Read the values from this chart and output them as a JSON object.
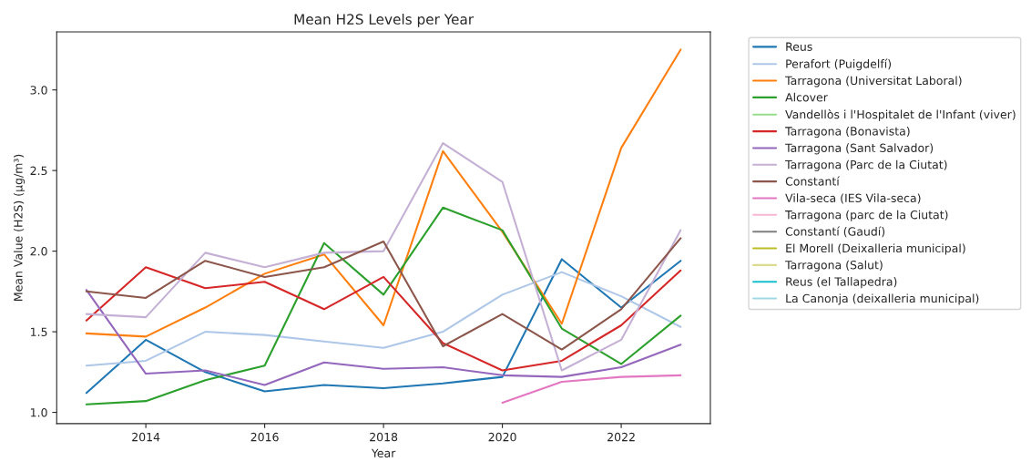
{
  "chart_data": {
    "type": "line",
    "title": "Mean H2S Levels per Year",
    "xlabel": "Year",
    "ylabel": "Mean Value (H2S) (µg/m³)",
    "x": [
      2013,
      2014,
      2015,
      2016,
      2017,
      2018,
      2019,
      2020,
      2021,
      2022,
      2023
    ],
    "xlim": [
      2012.5,
      2023.5
    ],
    "xticks": [
      2014,
      2016,
      2018,
      2020,
      2022
    ],
    "ylim": [
      0.93,
      3.36
    ],
    "yticks": [
      {
        "value": 1,
        "label": "1.0"
      },
      {
        "value": 1.5,
        "label": "1.5"
      },
      {
        "value": 2,
        "label": "2.0"
      },
      {
        "value": 2.5,
        "label": "2.5"
      },
      {
        "value": 3,
        "label": "3.0"
      }
    ],
    "grid": false,
    "legend": "right",
    "marker": "none",
    "line_style": "solid",
    "series": [
      {
        "name": "Reus",
        "color": "#1f77b4",
        "values": [
          1.12,
          1.45,
          1.25,
          1.13,
          1.17,
          1.15,
          1.18,
          1.22,
          1.95,
          1.65,
          1.94
        ]
      },
      {
        "name": "Perafort (Puigdelfí)",
        "color": "#aec7e8",
        "values": [
          1.29,
          1.32,
          1.5,
          1.48,
          1.44,
          1.4,
          1.5,
          1.73,
          1.87,
          1.72,
          1.53
        ]
      },
      {
        "name": "Tarragona (Universitat Laboral)",
        "color": "#ff7f0e",
        "values": [
          1.49,
          1.47,
          1.65,
          1.86,
          1.98,
          1.54,
          2.62,
          2.12,
          1.55,
          2.64,
          3.25
        ]
      },
      {
        "name": "Alcover",
        "color": "#2ca02c",
        "values": [
          1.05,
          1.07,
          1.2,
          1.29,
          2.05,
          1.73,
          2.27,
          2.13,
          1.52,
          1.3,
          1.6
        ]
      },
      {
        "name": "Vandellòs i l'Hospitalet de l'Infant (viver)",
        "color": "#98df8a",
        "values": [
          null,
          null,
          null,
          null,
          null,
          null,
          null,
          null,
          null,
          null,
          null
        ]
      },
      {
        "name": "Tarragona (Bonavista)",
        "color": "#d62728",
        "values": [
          1.57,
          1.9,
          1.77,
          1.81,
          1.64,
          1.84,
          1.43,
          1.26,
          1.32,
          1.54,
          1.88
        ]
      },
      {
        "name": "Tarragona (Sant Salvador)",
        "color": "#9467bd",
        "values": [
          1.76,
          1.24,
          1.26,
          1.17,
          1.31,
          1.27,
          1.28,
          1.23,
          1.22,
          1.28,
          1.42
        ]
      },
      {
        "name": "Tarragona (Parc de la Ciutat)",
        "color": "#c5b0d5",
        "values": [
          1.61,
          1.59,
          1.99,
          1.9,
          1.99,
          2.0,
          2.67,
          2.43,
          1.26,
          1.45,
          2.13
        ]
      },
      {
        "name": "Constantí",
        "color": "#8c564b",
        "values": [
          1.75,
          1.71,
          1.94,
          1.84,
          1.9,
          2.06,
          1.41,
          1.61,
          1.39,
          1.64,
          2.08
        ]
      },
      {
        "name": "Vila-seca (IES Vila-seca)",
        "color": "#e377c2",
        "values": [
          null,
          null,
          null,
          null,
          null,
          null,
          null,
          1.06,
          1.19,
          1.22,
          1.23
        ]
      },
      {
        "name": "Tarragona (parc de la Ciutat)",
        "color": "#f7b6d2",
        "values": [
          null,
          null,
          null,
          null,
          null,
          null,
          null,
          null,
          null,
          null,
          null
        ]
      },
      {
        "name": "Constantí (Gaudí)",
        "color": "#7f7f7f",
        "values": [
          null,
          null,
          null,
          null,
          null,
          null,
          null,
          null,
          null,
          null,
          null
        ]
      },
      {
        "name": "El Morell (Deixalleria municipal)",
        "color": "#bcbd22",
        "values": [
          null,
          null,
          null,
          null,
          null,
          null,
          null,
          null,
          null,
          null,
          null
        ]
      },
      {
        "name": "Tarragona (Salut)",
        "color": "#dbdb8d",
        "values": [
          null,
          null,
          null,
          null,
          null,
          null,
          null,
          null,
          null,
          null,
          null
        ]
      },
      {
        "name": "Reus (el Tallapedra)",
        "color": "#17becf",
        "values": [
          null,
          null,
          null,
          null,
          null,
          null,
          null,
          null,
          null,
          null,
          null
        ]
      },
      {
        "name": "La Canonja (deixalleria municipal)",
        "color": "#9edae5",
        "values": [
          null,
          null,
          null,
          null,
          null,
          null,
          null,
          null,
          null,
          null,
          null
        ]
      }
    ]
  }
}
